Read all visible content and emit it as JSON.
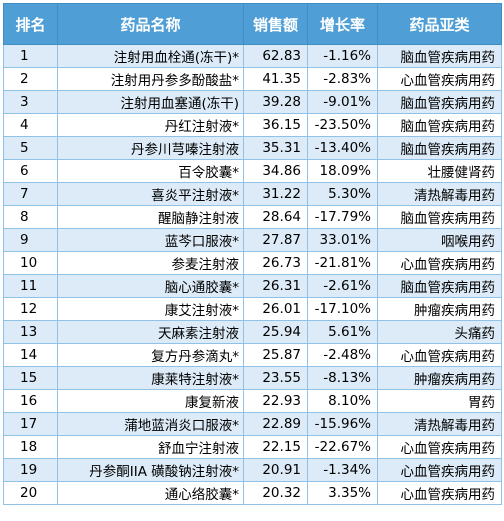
{
  "table": {
    "headers": [
      "排名",
      "药品名称",
      "销售额",
      "增长率",
      "药品亚类"
    ],
    "rows": [
      {
        "rank": "1",
        "name": "注射用血栓通(冻干)*",
        "sales": "62.83",
        "growth": "-1.16%",
        "category": "脑血管疾病用药"
      },
      {
        "rank": "2",
        "name": "注射用丹参多酚酸盐*",
        "sales": "41.35",
        "growth": "-2.83%",
        "category": "心血管疾病用药"
      },
      {
        "rank": "3",
        "name": "注射用血塞通(冻干)",
        "sales": "39.28",
        "growth": "-9.01%",
        "category": "脑血管疾病用药"
      },
      {
        "rank": "4",
        "name": "丹红注射液*",
        "sales": "36.15",
        "growth": "-23.50%",
        "category": "脑血管疾病用药"
      },
      {
        "rank": "5",
        "name": "丹参川芎嗪注射液",
        "sales": "35.31",
        "growth": "-13.40%",
        "category": "脑血管疾病用药"
      },
      {
        "rank": "6",
        "name": "百令胶囊*",
        "sales": "34.86",
        "growth": "18.09%",
        "category": "壮腰健肾药"
      },
      {
        "rank": "7",
        "name": "喜炎平注射液*",
        "sales": "31.22",
        "growth": "5.30%",
        "category": "清热解毒用药"
      },
      {
        "rank": "8",
        "name": "醒脑静注射液",
        "sales": "28.64",
        "growth": "-17.79%",
        "category": "脑血管疾病用药"
      },
      {
        "rank": "9",
        "name": "蓝芩口服液*",
        "sales": "27.87",
        "growth": "33.01%",
        "category": "咽喉用药"
      },
      {
        "rank": "10",
        "name": "参麦注射液",
        "sales": "26.73",
        "growth": "-21.81%",
        "category": "心血管疾病用药"
      },
      {
        "rank": "11",
        "name": "脑心通胶囊*",
        "sales": "26.31",
        "growth": "-2.61%",
        "category": "脑血管疾病用药"
      },
      {
        "rank": "12",
        "name": "康艾注射液*",
        "sales": "26.01",
        "growth": "-17.10%",
        "category": "肿瘤疾病用药"
      },
      {
        "rank": "13",
        "name": "天麻素注射液",
        "sales": "25.94",
        "growth": "5.61%",
        "category": "头痛药"
      },
      {
        "rank": "14",
        "name": "复方丹参滴丸*",
        "sales": "25.87",
        "growth": "-2.48%",
        "category": "心血管疾病用药"
      },
      {
        "rank": "15",
        "name": "康莱特注射液*",
        "sales": "23.55",
        "growth": "-8.13%",
        "category": "肿瘤疾病用药"
      },
      {
        "rank": "16",
        "name": "康复新液",
        "sales": "22.93",
        "growth": "8.10%",
        "category": "胃药"
      },
      {
        "rank": "17",
        "name": "蒲地蓝消炎口服液*",
        "sales": "22.89",
        "growth": "-15.96%",
        "category": "清热解毒用药"
      },
      {
        "rank": "18",
        "name": "舒血宁注射液",
        "sales": "22.15",
        "growth": "-22.67%",
        "category": "心血管疾病用药"
      },
      {
        "rank": "19",
        "name": "丹参酮IIA 磺酸钠注射液*",
        "sales": "20.91",
        "growth": "-1.34%",
        "category": "心血管疾病用药"
      },
      {
        "rank": "20",
        "name": "通心络胶囊*",
        "sales": "20.32",
        "growth": "3.35%",
        "category": "心血管疾病用药"
      }
    ]
  },
  "colors": {
    "header_bg": "#4f9fd6",
    "row_alt_bg": "#dcebf7",
    "border": "#8fc2e6"
  }
}
